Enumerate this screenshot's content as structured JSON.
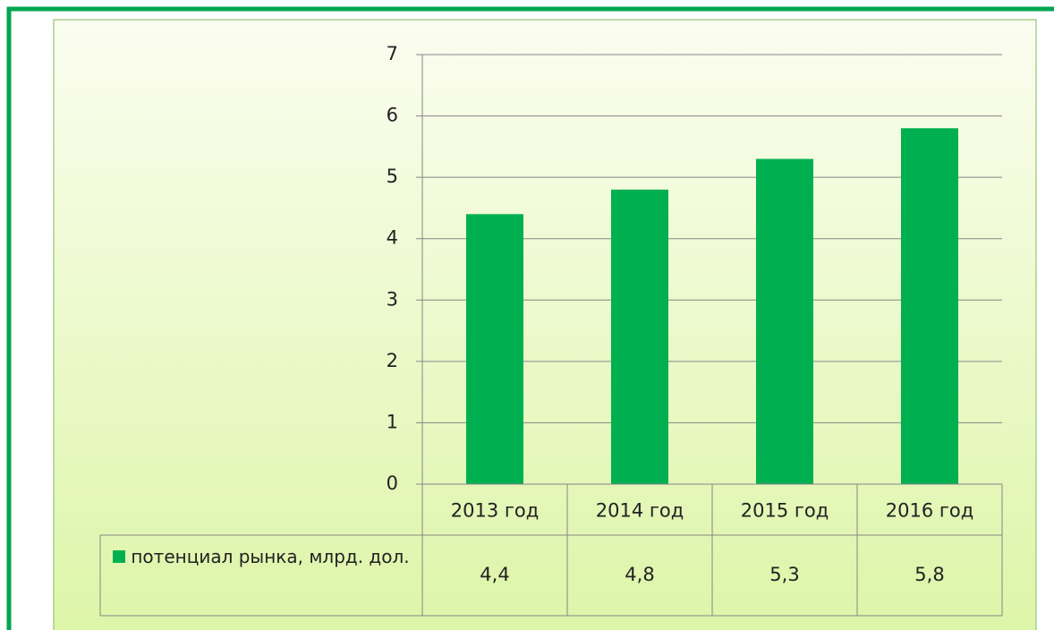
{
  "chart_data": {
    "type": "bar",
    "categories": [
      "2013 год",
      "2014 год",
      "2015 год",
      "2016 год"
    ],
    "series": [
      {
        "name": "потенциал рынка, млрд. дол.",
        "color": "#00b050",
        "values": [
          4.4,
          4.8,
          5.3,
          5.8
        ],
        "value_labels": [
          "4,4",
          "4,8",
          "5,3",
          "5,8"
        ]
      }
    ],
    "ylim": [
      0,
      7
    ],
    "yticks": [
      0,
      1,
      2,
      3,
      4,
      5,
      6,
      7
    ],
    "grid": true
  }
}
